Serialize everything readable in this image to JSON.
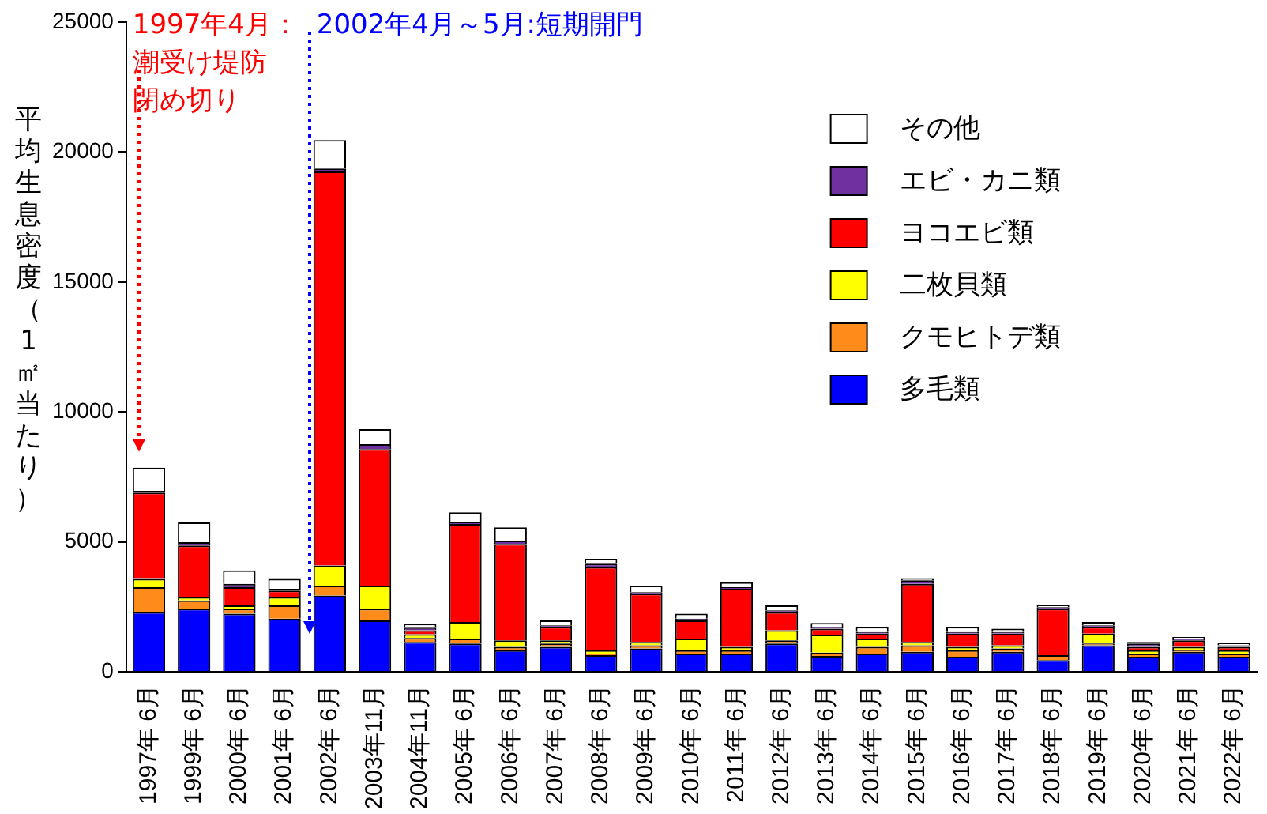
{
  "chart_data": {
    "type": "bar",
    "stacked": true,
    "ylabel": "平均生息密度（1㎡当たり）",
    "categories": [
      "1997年 6月",
      "1999年 6月",
      "2000年 6月",
      "2001年 6月",
      "2002年 6月",
      "2003年11月",
      "2004年11月",
      "2005年 6月",
      "2006年 6月",
      "2007年 6月",
      "2008年 6月",
      "2009年 6月",
      "2010年 6月",
      "2011年 6月",
      "2012年 6月",
      "2013年 6月",
      "2014年 6月",
      "2015年 6月",
      "2016年 6月",
      "2017年 6月",
      "2018年 6月",
      "2019年 6月",
      "2020年 6月",
      "2021年 6月",
      "2022年 6月"
    ],
    "series": [
      {
        "name": "多毛類",
        "color": "#0000ff",
        "values": [
          2300,
          2430,
          2240,
          2050,
          2940,
          1980,
          1150,
          1090,
          830,
          960,
          640,
          900,
          700,
          700,
          1090,
          610,
          700,
          770,
          580,
          770,
          450,
          1020,
          580,
          770,
          580
        ]
      },
      {
        "name": "クモヒトデ類",
        "color": "#ff8c1a",
        "values": [
          960,
          320,
          190,
          510,
          380,
          450,
          150,
          190,
          130,
          130,
          60,
          120,
          130,
          130,
          120,
          130,
          260,
          250,
          250,
          130,
          190,
          70,
          120,
          60,
          120
        ]
      },
      {
        "name": "二枚貝類",
        "color": "#ffff00",
        "values": [
          320,
          130,
          130,
          320,
          770,
          890,
          150,
          640,
          250,
          120,
          130,
          130,
          450,
          130,
          390,
          690,
          320,
          130,
          130,
          120,
          0,
          380,
          130,
          130,
          130
        ]
      },
      {
        "name": "ヨコエビ類",
        "color": "#ff0000",
        "values": [
          3320,
          1980,
          700,
          250,
          15160,
          5250,
          150,
          3770,
          3710,
          520,
          3200,
          1860,
          700,
          2240,
          700,
          230,
          190,
          2240,
          510,
          450,
          1790,
          260,
          130,
          250,
          130
        ]
      },
      {
        "name": "エビ・カニ類",
        "color": "#7030a0",
        "values": [
          70,
          130,
          130,
          70,
          120,
          190,
          100,
          60,
          130,
          60,
          130,
          60,
          70,
          60,
          70,
          70,
          60,
          130,
          60,
          60,
          60,
          60,
          130,
          70,
          60
        ]
      },
      {
        "name": "その他",
        "color": "#ffffff",
        "values": [
          890,
          760,
          510,
          380,
          1090,
          580,
          150,
          390,
          510,
          190,
          190,
          250,
          190,
          190,
          190,
          150,
          200,
          60,
          200,
          130,
          70,
          130,
          60,
          60,
          90
        ]
      }
    ],
    "ylim": [
      0,
      25000
    ],
    "yticks": [
      0,
      5000,
      10000,
      15000,
      20000,
      25000
    ],
    "grid": false,
    "legend": "top right",
    "annotations": [
      "潮受け堤防閉め切り"
    ],
    "ref_lines": [
      {
        "axis": "x",
        "value": "1997年 6月",
        "label": "1997年4月：",
        "color": "#ff0000",
        "line_style": "dotted"
      },
      {
        "axis": "x",
        "value": "2002年 6月",
        "label": "2002年4月～5月:短期開門",
        "color": "#0000ff",
        "line_style": "dotted"
      }
    ]
  }
}
